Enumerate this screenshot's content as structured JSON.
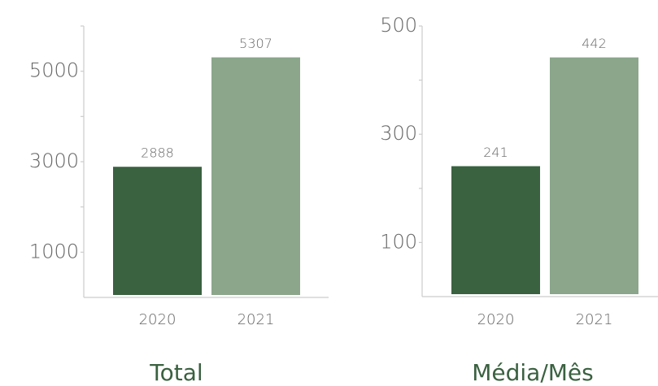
{
  "chart_data": [
    {
      "type": "bar",
      "title": "Total",
      "categories": [
        "2020",
        "2021"
      ],
      "values": [
        2888,
        5307
      ],
      "colors": [
        "#3a6140",
        "#8ba68b"
      ],
      "ylim": [
        0,
        6000
      ],
      "yticks": [
        1000,
        3000,
        5000
      ],
      "yminor_ticks": [
        2000,
        4000,
        6000
      ]
    },
    {
      "type": "bar",
      "title": "Média/Mês",
      "categories": [
        "2020",
        "2021"
      ],
      "values": [
        241,
        442
      ],
      "colors": [
        "#3a6140",
        "#8ba68b"
      ],
      "ylim": [
        0,
        500
      ],
      "yticks": [
        100,
        300,
        500
      ],
      "yminor_ticks": [
        200,
        400
      ]
    }
  ]
}
